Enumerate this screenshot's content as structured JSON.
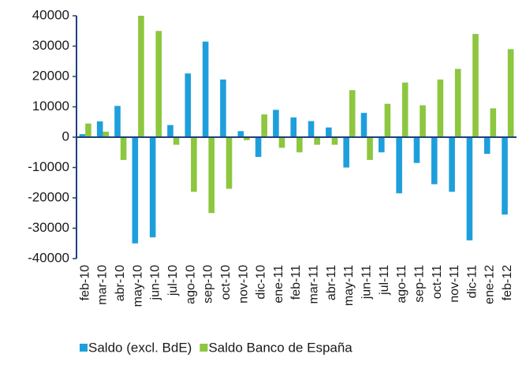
{
  "chart_data": {
    "type": "bar",
    "categories": [
      "feb-10",
      "mar-10",
      "abr-10",
      "may-10",
      "jun-10",
      "jul-10",
      "ago-10",
      "sep-10",
      "oct-10",
      "nov-10",
      "dic-10",
      "ene-11",
      "feb-11",
      "mar-11",
      "abr-11",
      "may-11",
      "jun-11",
      "jul-11",
      "ago-11",
      "sep-11",
      "oct-11",
      "nov-11",
      "dic-11",
      "ene-12",
      "feb-12"
    ],
    "series": [
      {
        "name": "Saldo (excl. BdE)",
        "color": "#1e9fdc",
        "values": [
          1000,
          5200,
          10300,
          -35000,
          -33000,
          4000,
          21000,
          31500,
          19000,
          2000,
          -6500,
          9000,
          6500,
          5300,
          3200,
          -10000,
          8000,
          -5000,
          -18500,
          -8500,
          -15500,
          -18000,
          -34000,
          -5500,
          -25500
        ]
      },
      {
        "name": "Saldo Banco de España",
        "color": "#8dc63f",
        "values": [
          4500,
          1800,
          -7500,
          40000,
          35000,
          -2500,
          -18000,
          -25000,
          -17000,
          -1000,
          7500,
          -3500,
          -5000,
          -2500,
          -2500,
          15500,
          -7500,
          11000,
          18000,
          10500,
          19000,
          22500,
          34000,
          9500,
          29000
        ]
      }
    ],
    "ylim": [
      -40000,
      40000
    ],
    "yticks": [
      -40000,
      -30000,
      -20000,
      -10000,
      0,
      10000,
      20000,
      30000,
      40000
    ]
  }
}
